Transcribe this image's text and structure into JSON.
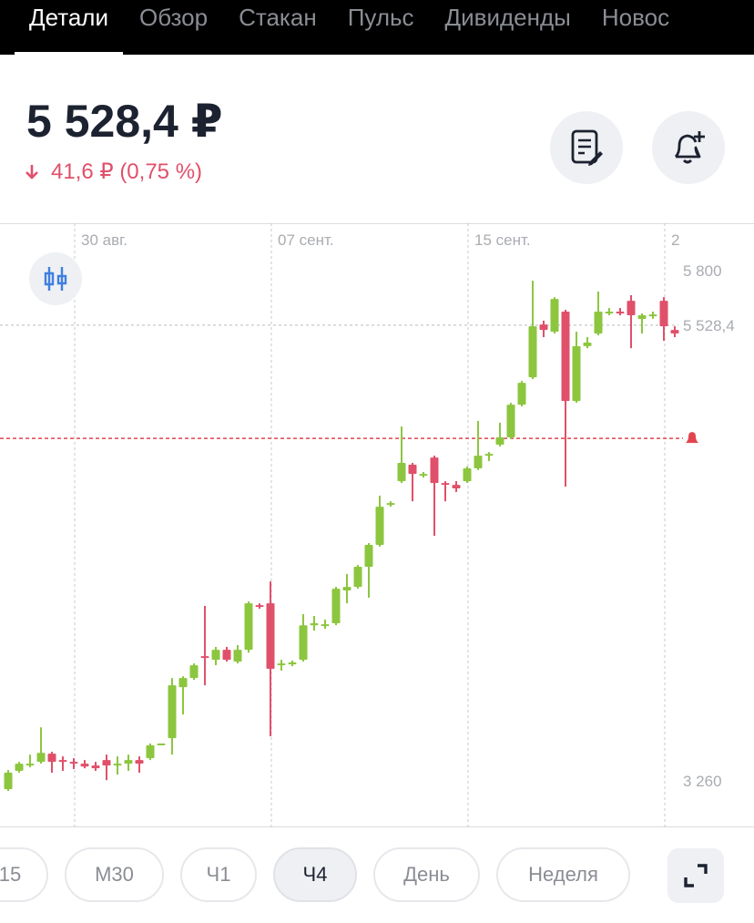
{
  "tabs": [
    "Детали",
    "Обзор",
    "Стакан",
    "Пульс",
    "Дивиденды",
    "Новос"
  ],
  "price": "5 528,4 ₽",
  "change": "41,6 ₽ (0,75 %)",
  "timeframes": [
    "15",
    "M30",
    "Ч1",
    "Ч4",
    "День",
    "Неделя"
  ],
  "chart_data": {
    "type": "candlestick",
    "categories": [
      null,
      null,
      null,
      null,
      null,
      null,
      "30 авг.",
      null,
      null,
      null,
      null,
      null,
      null,
      null,
      null,
      null,
      null,
      null,
      null,
      null,
      null,
      null,
      null,
      null,
      "07 сент.",
      null,
      null,
      null,
      null,
      null,
      null,
      null,
      null,
      null,
      null,
      null,
      null,
      null,
      null,
      null,
      null,
      null,
      "15 сент.",
      null,
      null,
      null,
      null,
      null,
      null,
      null,
      null,
      null,
      null,
      null,
      null,
      null,
      null,
      null,
      null,
      null,
      "2",
      null
    ],
    "open": [
      3219,
      3310,
      3337,
      3355,
      3396,
      3364,
      3355,
      3346,
      3337,
      3364,
      3337,
      3346,
      3364,
      3373,
      3441,
      3473,
      3727,
      3772,
      3881,
      3863,
      3913,
      3854,
      3913,
      4135,
      4144,
      3836,
      3840,
      3863,
      4035,
      4031,
      4045,
      4208,
      4226,
      4326,
      4435,
      4634,
      4752,
      4834,
      4779,
      4870,
      4743,
      4734,
      4752,
      4816,
      4879,
      4934,
      4970,
      5133,
      5269,
      5532,
      5496,
      5596,
      5151,
      5424,
      5487,
      5587,
      5596,
      5650,
      5560,
      5578,
      5650,
      5505
    ],
    "high": [
      3314,
      3355,
      3391,
      3527,
      3405,
      3382,
      3373,
      3364,
      3355,
      3391,
      3382,
      3391,
      3382,
      3446,
      3446,
      3772,
      3781,
      3845,
      4131,
      3927,
      3927,
      3936,
      4153,
      4144,
      4253,
      3863,
      3859,
      4090,
      4081,
      4063,
      4226,
      4290,
      4335,
      4444,
      4680,
      4652,
      5024,
      4843,
      4798,
      4879,
      4752,
      4752,
      4825,
      5052,
      4897,
      5043,
      5142,
      5251,
      5750,
      5551,
      5668,
      5605,
      5496,
      5469,
      5696,
      5614,
      5614,
      5678,
      5587,
      5596,
      5668,
      5523
    ],
    "low": [
      3210,
      3301,
      3328,
      3346,
      3301,
      3310,
      3319,
      3323,
      3310,
      3264,
      3292,
      3310,
      3301,
      3364,
      3437,
      3391,
      3591,
      3763,
      3736,
      3836,
      3854,
      3845,
      3899,
      4117,
      3482,
      3809,
      3831,
      3854,
      4008,
      4017,
      4035,
      4144,
      4217,
      4172,
      4426,
      4625,
      4743,
      4652,
      4770,
      4480,
      4652,
      4698,
      4743,
      4807,
      4852,
      4925,
      4961,
      5124,
      5260,
      5469,
      5487,
      4725,
      5142,
      5414,
      5478,
      5578,
      5578,
      5414,
      5487,
      5560,
      5451,
      5469
    ],
    "close": [
      3301,
      3346,
      3346,
      3400,
      3355,
      3355,
      3346,
      3332,
      3323,
      3337,
      3346,
      3364,
      3346,
      3437,
      3446,
      3736,
      3772,
      3836,
      3872,
      3913,
      3863,
      3913,
      4144,
      4126,
      3818,
      3845,
      3850,
      4035,
      4045,
      4040,
      4217,
      4226,
      4326,
      4435,
      4625,
      4643,
      4843,
      4788,
      4788,
      4743,
      4734,
      4716,
      4816,
      4879,
      4888,
      4970,
      5133,
      5242,
      5523,
      5505,
      5659,
      5151,
      5424,
      5442,
      5596,
      5596,
      5587,
      5578,
      5578,
      5582,
      5523,
      5487
    ],
    "up_color": "#8cc63f",
    "down_color": "#e0506a",
    "ylim": [
      3029,
      6036
    ],
    "yticks": [
      {
        "value": 3260,
        "label": "3 260"
      },
      {
        "value": 5800,
        "label": "5 800"
      }
    ],
    "price_line": {
      "value": 5528.4,
      "label": "5 528,4"
    },
    "alert_level": 4965,
    "grid": true
  }
}
